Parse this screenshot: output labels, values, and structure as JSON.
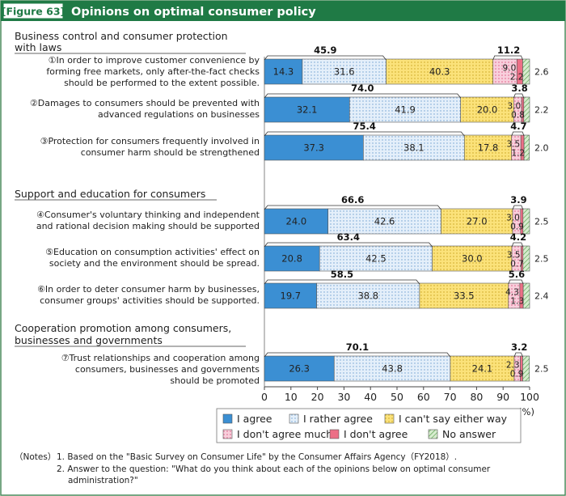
{
  "figure_label": "[Figure 63]",
  "title": "Opinions on optimal consumer policy",
  "colors": {
    "header_bg": "#1f7a45",
    "header_frame": "#4a8a5c",
    "title_text": "#ffffff",
    "axis": "#444444"
  },
  "chart_data": {
    "type": "bar",
    "orientation": "horizontal",
    "stacked": true,
    "xlim": [
      0,
      100
    ],
    "xticks": [
      0,
      10,
      20,
      30,
      40,
      50,
      60,
      70,
      80,
      90,
      100
    ],
    "xlabel": "(%)",
    "series": [
      {
        "name": "I agree",
        "color": "#3b8fd3",
        "pattern": "solid"
      },
      {
        "name": "I rather agree",
        "color": "#dbe9f6",
        "pattern": "dots-blue"
      },
      {
        "name": "I can't say either way",
        "color": "#f7dd72",
        "pattern": "dots-yellow"
      },
      {
        "name": "I don't agree much",
        "color": "#f5c6d6",
        "pattern": "dots-pink"
      },
      {
        "name": "I don't agree",
        "color": "#ec6f86",
        "pattern": "solid"
      },
      {
        "name": "No answer",
        "color": "#cfe7c6",
        "pattern": "hatch-green"
      }
    ],
    "groups": [
      {
        "name": "Business control and consumer protection with laws",
        "items": [
          {
            "label": "①In order to improve customer convenience by forming free markets, only after-the-fact checks should be performed to the extent possible.",
            "values": [
              14.3,
              31.6,
              40.3,
              9.0,
              2.2,
              2.6
            ],
            "agree_total": 45.9,
            "disagree_total": 11.2
          },
          {
            "label": "②Damages to consumers should be prevented with advanced regulations on businesses",
            "values": [
              32.1,
              41.9,
              20.0,
              3.0,
              0.8,
              2.2
            ],
            "agree_total": 74.0,
            "disagree_total": 3.8
          },
          {
            "label": "③Protection for consumers frequently involved in consumer harm should be strengthened",
            "values": [
              37.3,
              38.1,
              17.8,
              3.5,
              1.2,
              2.0
            ],
            "agree_total": 75.4,
            "disagree_total": 4.7
          }
        ]
      },
      {
        "name": "Support and education for consumers",
        "items": [
          {
            "label": "④Consumer's voluntary thinking and independent and rational decision making should be supported",
            "values": [
              24.0,
              42.6,
              27.0,
              3.0,
              0.9,
              2.5
            ],
            "agree_total": 66.6,
            "disagree_total": 3.9
          },
          {
            "label": "⑤Education on consumption activities' effect on society and the environment should be spread.",
            "values": [
              20.8,
              42.5,
              30.0,
              3.5,
              0.7,
              2.5
            ],
            "agree_total": 63.4,
            "disagree_total": 4.2
          },
          {
            "label": "⑥In order to deter consumer harm by businesses, consumer groups' activities should be supported.",
            "values": [
              19.7,
              38.8,
              33.5,
              4.3,
              1.3,
              2.4
            ],
            "agree_total": 58.5,
            "disagree_total": 5.6
          }
        ]
      },
      {
        "name": "Cooperation promotion among consumers, businesses and governments",
        "items": [
          {
            "label": "⑦Trust relationships and cooperation among consumers, businesses and governments should be promoted",
            "values": [
              26.3,
              43.8,
              24.1,
              2.3,
              0.9,
              2.5
            ],
            "agree_total": 70.1,
            "disagree_total": 3.2
          }
        ]
      }
    ]
  },
  "notes": {
    "prefix": "（Notes）",
    "note1": "1. Based on the \"Basic Survey on Consumer Life\" by the Consumer Affairs Agency（FY2018）.",
    "note2a": "2. Answer to the question: \"What do you think about each of the opinions below on optimal consumer",
    "note2b": "administration?\""
  }
}
